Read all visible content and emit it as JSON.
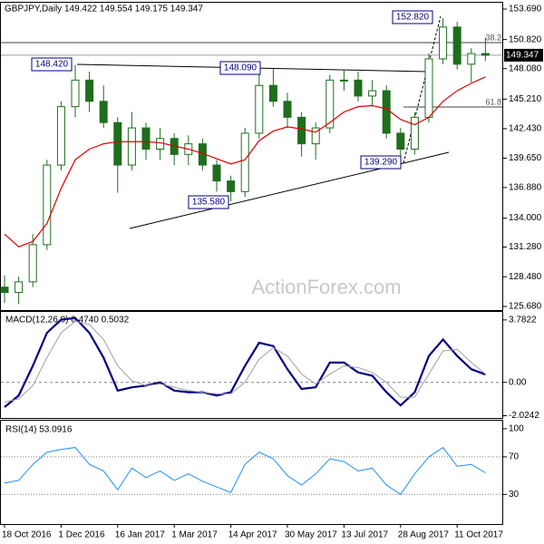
{
  "chart_data": [
    {
      "type": "candlestick",
      "title": "GBPJPY,Daily  149.422 149.554 149.175 149.347",
      "watermark": "ActionForex.com",
      "up_color": "#ffffff",
      "down_color": "#1e6e1e",
      "wick_color": "#1e6e1e",
      "open": [
        127.5,
        127,
        128,
        131.5,
        139,
        144.5,
        147,
        145,
        143,
        139,
        142.5,
        140.5,
        141.5,
        140,
        141,
        139,
        137.5,
        136.5,
        142,
        146.5,
        145,
        143.5,
        141,
        142.5,
        147,
        147,
        145.5,
        146,
        142,
        140.5,
        143.5,
        149,
        152,
        148.5,
        149.5
      ],
      "high": [
        128.6,
        128.5,
        132.5,
        139.5,
        145,
        148.42,
        147.8,
        146.5,
        143.5,
        144,
        143,
        142.5,
        142,
        141.8,
        141.5,
        139.5,
        138,
        142.5,
        147.5,
        148.09,
        145.8,
        144,
        143,
        147.5,
        148,
        147.8,
        147,
        146.5,
        142.5,
        144,
        149.5,
        152.82,
        152.5,
        150,
        151
      ],
      "low": [
        126,
        125.9,
        127.5,
        131,
        138.5,
        143.5,
        144,
        142.5,
        136.4,
        138.5,
        139.5,
        139.5,
        139,
        139,
        138.5,
        136.5,
        135.58,
        136,
        141.5,
        144.5,
        142.5,
        139.8,
        139.5,
        142,
        146,
        145,
        144.5,
        141.5,
        139.29,
        140,
        143,
        148.5,
        148,
        146.8,
        148.8
      ],
      "close": [
        127,
        128,
        131.5,
        139,
        144.5,
        147,
        145,
        143,
        139,
        142.5,
        140.5,
        141.5,
        140,
        141,
        139,
        137.5,
        136.5,
        142,
        146.5,
        145,
        143.5,
        141,
        142.5,
        147,
        147,
        145.5,
        146,
        142,
        140.5,
        143.5,
        149,
        152,
        148.5,
        149.5,
        149.35
      ],
      "ma": {
        "color": "#e00000",
        "values": [
          132.5,
          131.3,
          131.8,
          133.5,
          136.8,
          139.5,
          140.5,
          141,
          141.2,
          141.2,
          141.2,
          141.1,
          140.8,
          140.5,
          140.1,
          139.6,
          139.1,
          139.5,
          141.3,
          142.2,
          142.6,
          142.4,
          142.1,
          143,
          144,
          144.5,
          144.6,
          144.3,
          143.3,
          142.8,
          143.5,
          145,
          146,
          146.7,
          147.3
        ]
      },
      "ylim": [
        125.34,
        154.29
      ],
      "yticks": [
        {
          "value": 153.69,
          "label": "153.690"
        },
        {
          "value": 150.82,
          "label": "150.820"
        },
        {
          "value": 148.08,
          "label": "148.080"
        },
        {
          "value": 145.21,
          "label": "145.210"
        },
        {
          "value": 142.43,
          "label": "142.430"
        },
        {
          "value": 139.65,
          "label": "139.650"
        },
        {
          "value": 136.88,
          "label": "136.880"
        },
        {
          "value": 134,
          "label": "134.000"
        },
        {
          "value": 131.28,
          "label": "131.280"
        },
        {
          "value": 128.48,
          "label": "128.480"
        },
        {
          "value": 125.68,
          "label": "125.680"
        }
      ],
      "current_price": {
        "value": 149.347,
        "label": "149.347"
      },
      "levels": [
        {
          "label": "38.2",
          "value": 150.53
        },
        {
          "label": "61.8",
          "value": 144.47
        }
      ],
      "annotations": [
        "152.820",
        "148.420",
        "148.090",
        "135.580",
        "139.290"
      ]
    },
    {
      "type": "line",
      "title": "MACD(12,26,9) 0.4740 0.5032",
      "series": [
        {
          "color": "#000080",
          "values": [
            -1.5,
            -0.8,
            1,
            3,
            3.8,
            3.9,
            3,
            1.5,
            -0.5,
            -0.3,
            -0.2,
            0,
            -0.5,
            -0.6,
            -0.6,
            -0.8,
            -0.6,
            1,
            2.4,
            2.2,
            0.8,
            -0.4,
            -0.3,
            1.2,
            1.2,
            0.6,
            0.4,
            -0.6,
            -1.4,
            -0.6,
            1.6,
            2.6,
            1.6,
            0.8,
            0.474
          ]
        },
        {
          "color": "#a0a0a0",
          "values": [
            -1.2,
            -1,
            -0.2,
            1.5,
            3,
            3.7,
            3.5,
            2.6,
            1,
            0.1,
            -0.2,
            -0.1,
            -0.3,
            -0.5,
            -0.6,
            -0.7,
            -0.7,
            0,
            1.4,
            2.1,
            1.6,
            0.5,
            -0.1,
            0.5,
            1,
            0.9,
            0.6,
            0,
            -0.9,
            -0.9,
            0.5,
            1.9,
            2,
            1.2,
            0.5032
          ]
        }
      ],
      "ylim": [
        -2.16,
        4.27
      ],
      "yticks": [
        3.7822,
        {
          "value": 0,
          "label": "0.00"
        },
        -2.0242
      ]
    },
    {
      "type": "line",
      "title": "RSI(14) 53.0916",
      "series": [
        {
          "color": "#1e90ff",
          "values": [
            42,
            45,
            62,
            75,
            78,
            80,
            62,
            55,
            35,
            58,
            48,
            55,
            45,
            52,
            44,
            38,
            32,
            62,
            75,
            68,
            50,
            40,
            52,
            68,
            65,
            55,
            58,
            40,
            30,
            52,
            70,
            80,
            60,
            62,
            53.0916
          ]
        }
      ],
      "ylim": [
        -1.6,
        108.6
      ],
      "yticks": [
        100,
        70,
        30
      ],
      "categories": [
        "18 Oct 2016",
        null,
        null,
        null,
        "1 Dec 2016",
        null,
        null,
        null,
        "16 Jan 2017",
        null,
        null,
        null,
        "1 Mar 2017",
        null,
        null,
        null,
        "14 Apr 2017",
        null,
        null,
        null,
        "30 May 2017",
        null,
        null,
        null,
        "13 Jul 2017",
        null,
        null,
        null,
        "28 Aug 2017",
        null,
        null,
        null,
        "11 Oct 2017",
        null,
        null
      ]
    }
  ]
}
